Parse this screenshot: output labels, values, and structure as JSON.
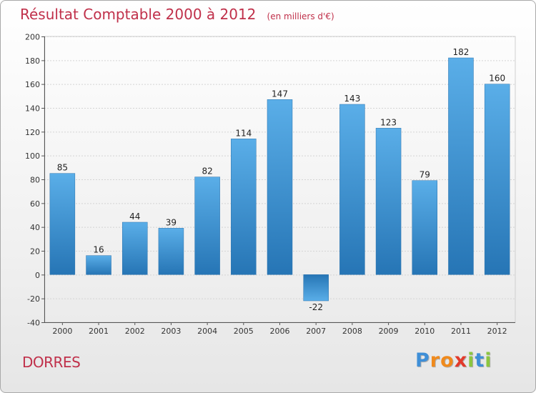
{
  "chart_data": {
    "type": "bar",
    "title": "Résultat Comptable 2000 à 2012",
    "subtitle": "(en milliers d'€)",
    "xlabel": "",
    "ylabel": "",
    "categories": [
      "2000",
      "2001",
      "2002",
      "2003",
      "2004",
      "2005",
      "2006",
      "2007",
      "2008",
      "2009",
      "2010",
      "2011",
      "2012"
    ],
    "values": [
      85,
      16,
      44,
      39,
      82,
      114,
      147,
      -22,
      143,
      123,
      79,
      182,
      160
    ],
    "data_labels": [
      "85",
      "16",
      "44",
      "39",
      "82",
      "114",
      "147",
      "-22",
      "143",
      "123",
      "79",
      "182",
      "160"
    ],
    "ylim": [
      -40,
      200
    ],
    "yticks": [
      "200",
      "180",
      "160",
      "140",
      "120",
      "100",
      "80",
      "60",
      "40",
      "20",
      "0",
      "-20",
      "-40"
    ],
    "grid": true,
    "bar_color": "#3b8fd6"
  },
  "footer": {
    "city": "DORRES",
    "logo_text": "Proxiti"
  }
}
